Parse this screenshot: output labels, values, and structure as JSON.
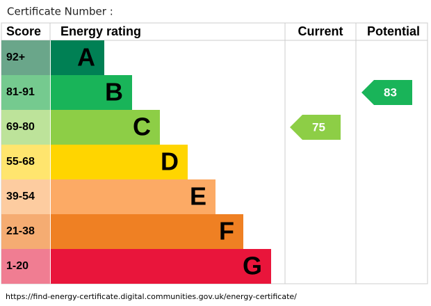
{
  "header": {
    "certificate_label": "Certificate Number :"
  },
  "columns": {
    "score": "Score",
    "rating": "Energy rating",
    "current": "Current",
    "potential": "Potential"
  },
  "bands": [
    {
      "score": "92+",
      "letter": "A",
      "color": "#008054",
      "light": "#6aa68a"
    },
    {
      "score": "81-91",
      "letter": "B",
      "color": "#19b459",
      "light": "#75ca8f"
    },
    {
      "score": "69-80",
      "letter": "C",
      "color": "#8dce46",
      "light": "#bde39a"
    },
    {
      "score": "55-68",
      "letter": "D",
      "color": "#ffd500",
      "light": "#ffe56e"
    },
    {
      "score": "39-54",
      "letter": "E",
      "color": "#fcaa65",
      "light": "#fdcca0"
    },
    {
      "score": "21-38",
      "letter": "F",
      "color": "#ef8023",
      "light": "#f5ac72"
    },
    {
      "score": "1-20",
      "letter": "G",
      "color": "#e9153b",
      "light": "#f07d92"
    }
  ],
  "current": 75,
  "potential": 83,
  "footer": {
    "url": "https://find-energy-certificate.digital.communities.gov.uk/energy-certificate/"
  }
}
